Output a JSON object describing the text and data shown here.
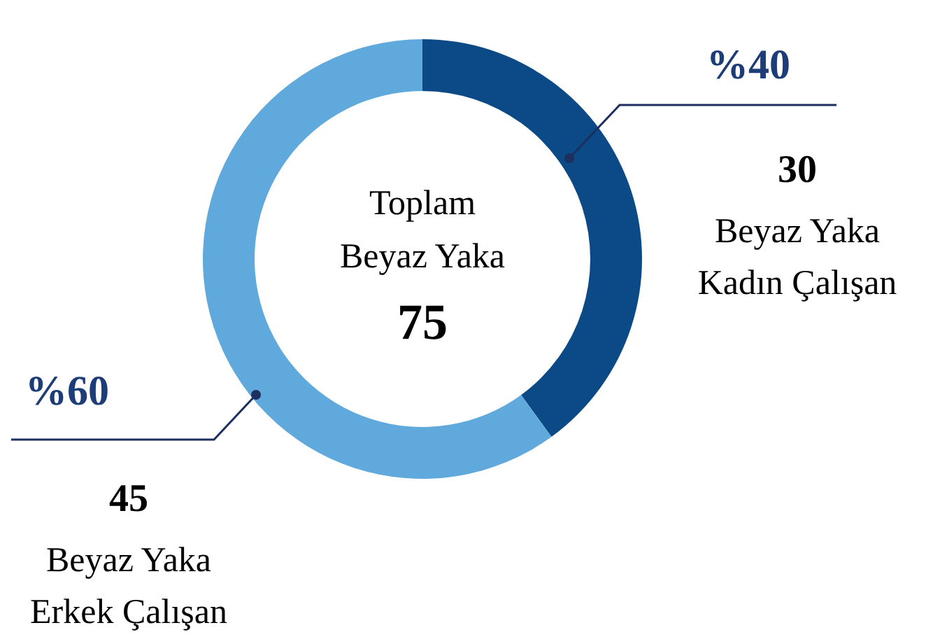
{
  "chart_data": {
    "type": "donut",
    "title": "Toplam Beyaz Yaka",
    "categories": [
      "Beyaz Yaka Kadın Çalışan",
      "Beyaz Yaka Erkek Çalışan"
    ],
    "values": [
      30,
      45
    ],
    "colors": [
      "#0b4a86",
      "#5fa9dd"
    ],
    "data_labels": true,
    "annotations": [
      "75",
      "%40",
      "%60"
    ]
  }
}
